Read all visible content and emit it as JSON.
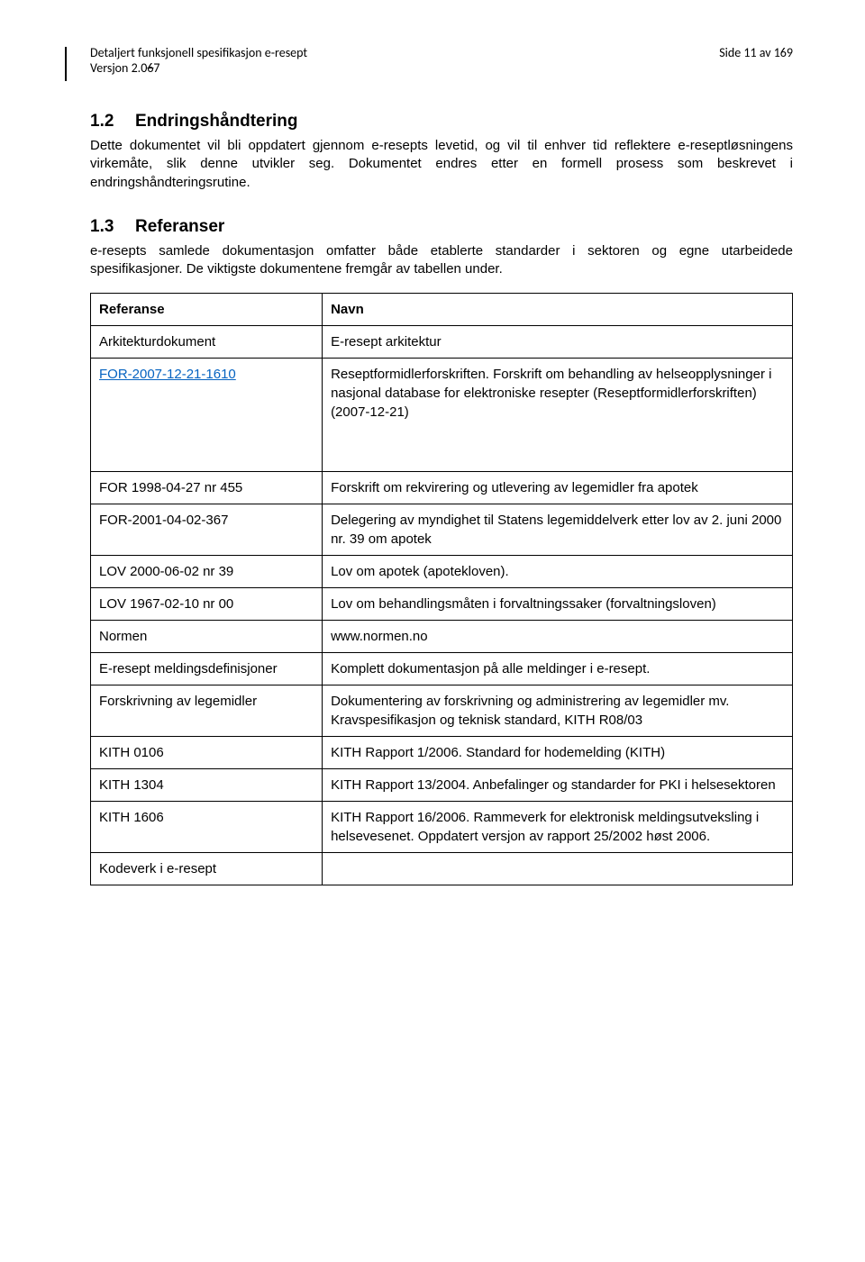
{
  "header": {
    "doc_title": "Detaljert funksjonell spesifikasjon e-resept",
    "page_info": "Side 11 av 169",
    "version_prefix": "Versjon  2.0",
    "version_strike": "6",
    "version_new": "7"
  },
  "section_12": {
    "number": "1.2",
    "title": "Endringshåndtering",
    "para": "Dette dokumentet vil bli oppdatert gjennom e-resepts levetid, og vil til enhver tid reflektere e-reseptløsningens virkemåte, slik denne utvikler seg. Dokumentet endres etter en formell prosess som beskrevet i endringshåndteringsrutine."
  },
  "section_13": {
    "number": "1.3",
    "title": "Referanser",
    "para": "e-resepts samlede dokumentasjon omfatter både etablerte standarder i sektoren og egne utarbeidede spesifikasjoner. De viktigste dokumentene fremgår av tabellen under."
  },
  "table": {
    "head_ref": "Referanse",
    "head_name": "Navn",
    "rows": [
      {
        "ref": "Arkitekturdokument",
        "name": "E-resept arkitektur",
        "link": false,
        "justify": false
      },
      {
        "ref": "FOR-2007-12-21-1610",
        "name": "Reseptformidlerforskriften. Forskrift om behandling av helseopplysninger i nasjonal database for elektroniske resepter (Reseptformidlerforskriften) (2007-12-21)",
        "link": true,
        "justify": false,
        "tall": true
      },
      {
        "ref": "FOR 1998-04-27 nr 455",
        "name": "Forskrift om rekvirering og utlevering av legemidler fra apotek",
        "link": false,
        "justify": false
      },
      {
        "ref": "FOR-2001-04-02-367",
        "name": "Delegering av myndighet til Statens legemiddelverk etter lov av 2. juni 2000 nr. 39 om apotek",
        "link": false,
        "justify": false
      },
      {
        "ref": "LOV 2000-06-02 nr 39",
        "name": "Lov om apotek (apotekloven).",
        "link": false,
        "justify": false
      },
      {
        "ref": "LOV 1967-02-10 nr 00",
        "name": "Lov om behandlingsmåten i forvaltningssaker (forvaltningsloven)",
        "link": false,
        "justify": true
      },
      {
        "ref": "Normen",
        "name": "www.normen.no",
        "link": false,
        "justify": false
      },
      {
        "ref": "E-resept meldingsdefinisjoner",
        "name": "Komplett dokumentasjon på alle meldinger i e-resept.",
        "link": false,
        "justify": true
      },
      {
        "ref": "Forskrivning av legemidler",
        "name": "Dokumentering av forskrivning og administrering av legemidler mv. Kravspesifikasjon og teknisk standard, KITH R08/03",
        "link": false,
        "justify": true
      },
      {
        "ref": "KITH 0106",
        "name": "KITH Rapport 1/2006. Standard for hodemelding (KITH)",
        "link": false,
        "justify": true
      },
      {
        "ref": "KITH 1304",
        "name": "KITH Rapport 13/2004. Anbefalinger og standarder for PKI i helsesektoren",
        "link": false,
        "justify": false
      },
      {
        "ref": "KITH 1606",
        "name": "KITH Rapport 16/2006. Rammeverk for elektronisk meldingsutveksling i helsevesenet. Oppdatert versjon av rapport 25/2002 høst 2006.",
        "link": false,
        "justify": true
      },
      {
        "ref": "Kodeverk i e-resept",
        "name": "",
        "link": false,
        "justify": false,
        "last": true
      }
    ]
  }
}
